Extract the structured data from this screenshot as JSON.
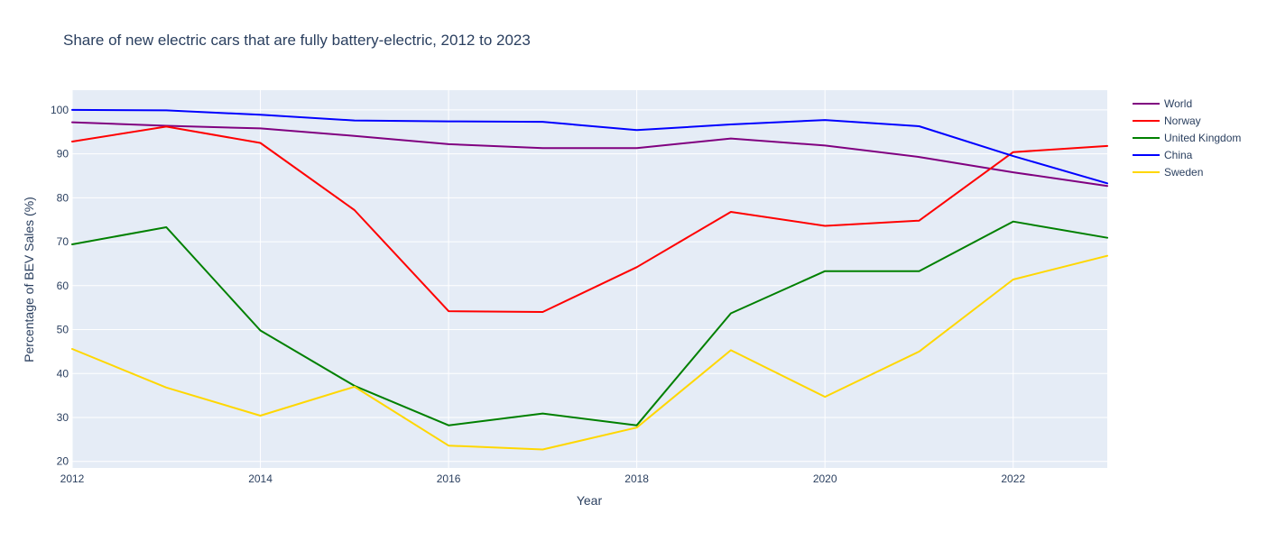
{
  "chart_data": {
    "type": "line",
    "title": "Share of new electric cars that are fully battery-electric, 2012 to 2023",
    "xlabel": "Year",
    "ylabel": "Percentage of BEV Sales (%)",
    "x": [
      2012,
      2013,
      2014,
      2015,
      2016,
      2017,
      2018,
      2019,
      2020,
      2021,
      2022,
      2023
    ],
    "xlim": [
      2012,
      2023
    ],
    "ylim": [
      18.5,
      104.5
    ],
    "x_ticks": [
      2012,
      2014,
      2016,
      2018,
      2020,
      2022
    ],
    "x_tick_labels": [
      "2012",
      "2014",
      "2016",
      "2018",
      "2020",
      "2022"
    ],
    "y_ticks": [
      20,
      30,
      40,
      50,
      60,
      70,
      80,
      90,
      100
    ],
    "y_tick_labels": [
      "20",
      "30",
      "40",
      "50",
      "60",
      "70",
      "80",
      "90",
      "100"
    ],
    "grid": true,
    "legend_position": "right",
    "background_color": "#e5ecf6",
    "series": [
      {
        "name": "World",
        "color": "#800080",
        "values": [
          97.2,
          96.4,
          95.8,
          94.1,
          92.2,
          91.3,
          91.3,
          93.5,
          91.9,
          89.3,
          85.8,
          82.7
        ]
      },
      {
        "name": "Norway",
        "color": "#ff0000",
        "values": [
          92.8,
          96.2,
          92.5,
          77.2,
          54.2,
          54.0,
          64.2,
          76.8,
          73.6,
          74.8,
          90.4,
          91.8
        ]
      },
      {
        "name": "United Kingdom",
        "color": "#008000",
        "values": [
          69.4,
          73.3,
          49.8,
          37.2,
          28.2,
          30.9,
          28.2,
          53.7,
          63.3,
          63.3,
          74.6,
          70.9
        ]
      },
      {
        "name": "China",
        "color": "#0000ff",
        "values": [
          100.0,
          99.9,
          98.9,
          97.6,
          97.4,
          97.3,
          95.4,
          96.7,
          97.7,
          96.3,
          89.5,
          83.3
        ]
      },
      {
        "name": "Sweden",
        "color": "#ffd700",
        "values": [
          45.6,
          36.8,
          30.4,
          37.0,
          23.6,
          22.7,
          27.7,
          45.3,
          34.7,
          45.0,
          61.4,
          66.8
        ]
      }
    ]
  }
}
